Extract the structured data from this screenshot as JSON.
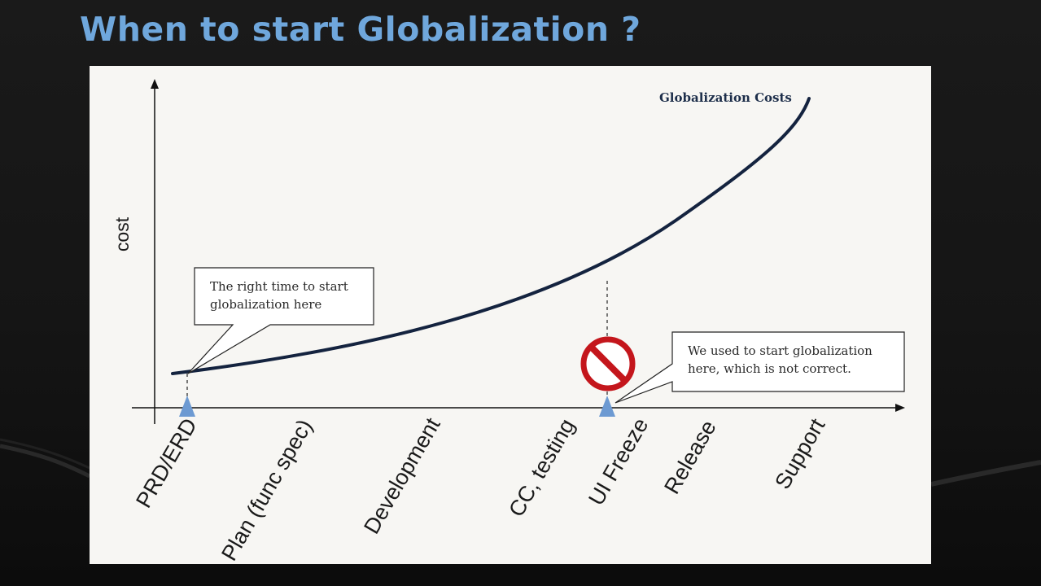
{
  "slide": {
    "title": "When to start Globalization ?"
  },
  "diagram": {
    "y_axis_label": "cost",
    "curve_label": "Globalization Costs",
    "phases": [
      "PRD/ERD",
      "Plan (func spec)",
      "Development",
      "CC, testing",
      "UI Freeze",
      "Release",
      "Support"
    ],
    "callout_right_time": {
      "line1": "The right time to start",
      "line2": "globalization here"
    },
    "callout_wrong_time": {
      "line1": "We used to start globalization",
      "line2": "here, which is not correct."
    },
    "icons": {
      "marker": "triangle-marker-icon",
      "prohibited": "no-entry-icon"
    },
    "colors": {
      "title": "#6fa7dc",
      "curve": "#14233f",
      "marker": "#6d9ad2",
      "prohibited": "#c4161c"
    }
  }
}
